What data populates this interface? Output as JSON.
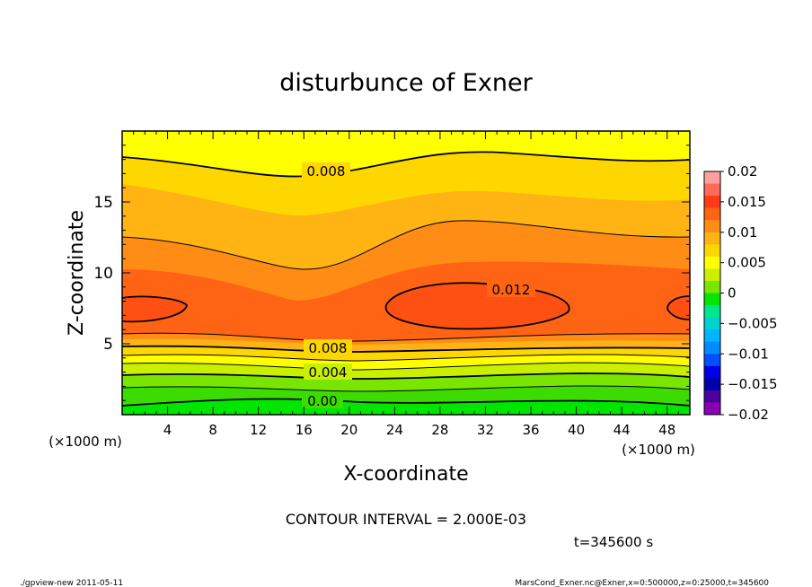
{
  "chart_data": {
    "type": "contour",
    "title": "disturbunce of Exner",
    "xlabel": "X-coordinate",
    "ylabel": "Z-coordinate",
    "x_unit_left": "(×1000 m)",
    "x_unit_right": "(×1000 m)",
    "xlim": [
      0,
      50
    ],
    "ylim": [
      0,
      20
    ],
    "xticks": [
      4,
      8,
      12,
      16,
      20,
      24,
      28,
      32,
      36,
      40,
      44,
      48
    ],
    "yticks": [
      5,
      10,
      15
    ],
    "contour_interval_text": "CONTOUR INTERVAL = 2.000E-03",
    "time_text": "t=345600 s",
    "contour_labels": [
      "0.008",
      "0.012",
      "0.008",
      "0.004",
      "0.00"
    ],
    "colorbar": {
      "range": [
        -0.02,
        0.02
      ],
      "labels": [
        "0.02",
        "0.015",
        "0.01",
        "0.005",
        "0",
        "−0.005",
        "−0.01",
        "−0.015",
        "−0.02"
      ],
      "colors": [
        "#ffa0a0",
        "#ff6a5a",
        "#ff3c14",
        "#ff6414",
        "#ff8c14",
        "#ffb414",
        "#ffd700",
        "#ffff00",
        "#c8f000",
        "#78e600",
        "#00e600",
        "#00e68c",
        "#00d2d2",
        "#00b4ff",
        "#008cff",
        "#0050ff",
        "#0000e6",
        "#0000aa",
        "#4b00a0",
        "#8c00b4"
      ]
    }
  },
  "footer": {
    "left": "./gpview-new   2011-05-11",
    "right": "MarsCond_Exner.nc@Exner,x=0:500000,z=0:25000,t=345600"
  }
}
